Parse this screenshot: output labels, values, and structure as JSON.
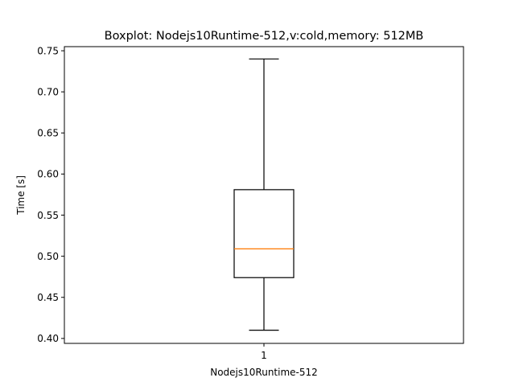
{
  "chart_data": {
    "type": "boxplot",
    "title": "Boxplot: Nodejs10Runtime-512,v:cold,memory: 512MB",
    "xlabel": "Nodejs10Runtime-512",
    "ylabel": "Time [s]",
    "categories": [
      "1"
    ],
    "ylim": [
      0.394,
      0.755
    ],
    "yticks": [
      0.4,
      0.45,
      0.5,
      0.55,
      0.6,
      0.65,
      0.7,
      0.75
    ],
    "ytick_labels": [
      "0.40",
      "0.45",
      "0.50",
      "0.55",
      "0.60",
      "0.65",
      "0.70",
      "0.75"
    ],
    "boxes": [
      {
        "whisker_low": 0.41,
        "q1": 0.474,
        "median": 0.509,
        "q3": 0.581,
        "whisker_high": 0.74
      }
    ],
    "colors": {
      "box": "#000000",
      "median": "#ff7f0e",
      "axes": "#000000"
    },
    "grid": false
  }
}
